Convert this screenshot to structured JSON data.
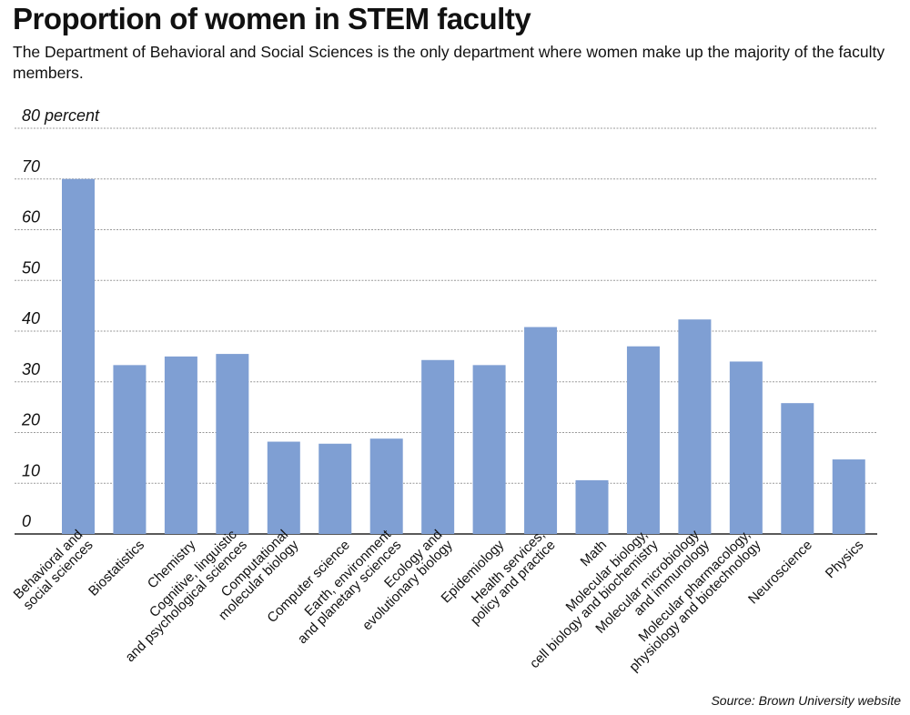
{
  "title": "Proportion of women in STEM faculty",
  "subtitle": "The Department of Behavioral and Social Sciences is the only department where women make up the majority of the faculty members.",
  "source": "Source: Brown University website",
  "colors": {
    "bar": "#7f9fd3",
    "grid": "#9a9a9a",
    "axis": "#222222",
    "text": "#111111"
  },
  "chart_data": {
    "type": "bar",
    "title": "Proportion of women in STEM faculty",
    "xlabel": "",
    "ylabel": "percent",
    "ylim": [
      0,
      80
    ],
    "yticks": [
      {
        "value": 0,
        "label": "0"
      },
      {
        "value": 10,
        "label": "10"
      },
      {
        "value": 20,
        "label": "20"
      },
      {
        "value": 30,
        "label": "30"
      },
      {
        "value": 40,
        "label": "40"
      },
      {
        "value": 50,
        "label": "50"
      },
      {
        "value": 60,
        "label": "60"
      },
      {
        "value": 70,
        "label": "70"
      },
      {
        "value": 80,
        "label": "80 percent"
      }
    ],
    "categories": [
      [
        "Behavioral and",
        "social sciences"
      ],
      [
        "Biostatistics"
      ],
      [
        "Chemistry"
      ],
      [
        "Cognitive, linguistic",
        "and psychological sciences"
      ],
      [
        "Computational",
        "molecular biology"
      ],
      [
        "Computer science"
      ],
      [
        "Earth, environment",
        "and planetary sciences"
      ],
      [
        "Ecology and",
        "evolutionary biology"
      ],
      [
        "Epidemiology"
      ],
      [
        "Health services,",
        "policy and practice"
      ],
      [
        "Math"
      ],
      [
        "Molecular biology,",
        "cell biology and biochemistry"
      ],
      [
        "Molecular microbiology",
        "and immunology"
      ],
      [
        "Molecular pharmacology,",
        "physiology and biotechnology"
      ],
      [
        "Neuroscience"
      ],
      [
        "Physics"
      ]
    ],
    "values": [
      70,
      33.3,
      35,
      35.5,
      18.2,
      17.8,
      18.8,
      34.3,
      33.3,
      40.8,
      10.6,
      37,
      42.3,
      34,
      25.8,
      14.7
    ]
  }
}
